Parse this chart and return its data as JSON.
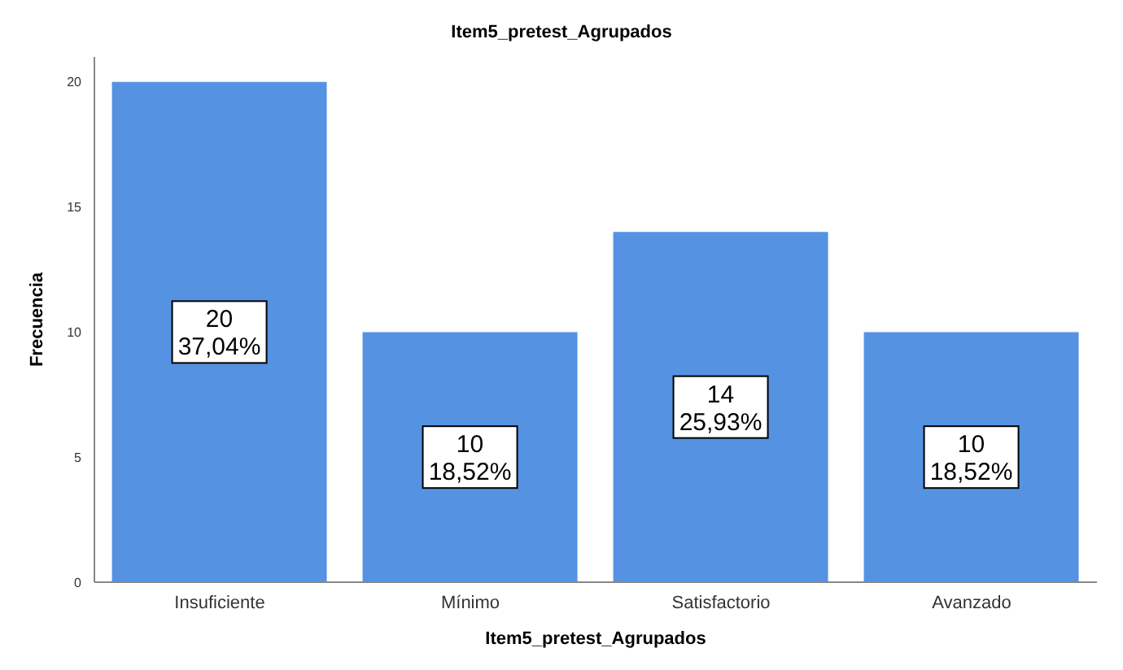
{
  "chart_data": {
    "type": "bar",
    "title": "Item5_pretest_Agrupados",
    "xlabel": "Item5_pretest_Agrupados",
    "ylabel": "Frecuencia",
    "categories": [
      "Insuficiente",
      "Mínimo",
      "Satisfactorio",
      "Avanzado"
    ],
    "values": [
      20,
      10,
      14,
      10
    ],
    "color": "#5592e2",
    "value_labels": [
      "20\n37,04%",
      "10\n18,52%",
      "14\n25,93%",
      "10\n18,52%"
    ],
    "ylim": [
      0,
      21
    ],
    "yticks": [
      0,
      5,
      10,
      15,
      20
    ],
    "grid": false
  }
}
